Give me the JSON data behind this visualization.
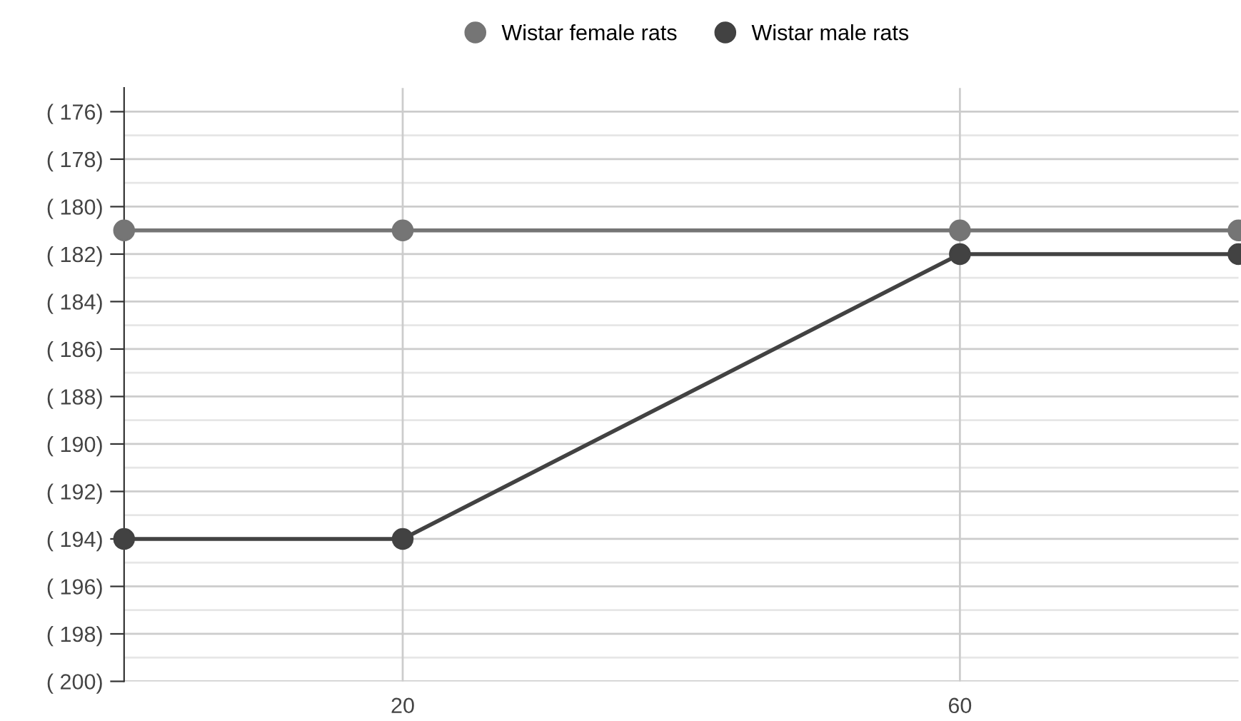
{
  "chart_data": {
    "type": "line",
    "x": [
      0,
      20,
      60,
      80
    ],
    "series": [
      {
        "name": "Wistar female rats",
        "color": "#757575",
        "values": [
          -181,
          -181,
          -181,
          -181
        ]
      },
      {
        "name": "Wistar male rats",
        "color": "#424242",
        "values": [
          -194,
          -194,
          -182,
          -182
        ]
      }
    ],
    "xlim": [
      0,
      80
    ],
    "xticks": [
      20,
      60
    ],
    "ylim": [
      -200,
      -175
    ],
    "yticks": [
      {
        "value": -176,
        "label": "( 176)"
      },
      {
        "value": -178,
        "label": "( 178)"
      },
      {
        "value": -180,
        "label": "( 180)"
      },
      {
        "value": -182,
        "label": "( 182)"
      },
      {
        "value": -184,
        "label": "( 184)"
      },
      {
        "value": -186,
        "label": "( 186)"
      },
      {
        "value": -188,
        "label": "( 188)"
      },
      {
        "value": -190,
        "label": "( 190)"
      },
      {
        "value": -192,
        "label": "( 192)"
      },
      {
        "value": -194,
        "label": "( 194)"
      },
      {
        "value": -196,
        "label": "( 196)"
      },
      {
        "value": -198,
        "label": "( 198)"
      },
      {
        "value": -200,
        "label": "( 200)"
      }
    ],
    "grid": true,
    "legend": "top",
    "marker": "circle",
    "line_style": "solid"
  }
}
